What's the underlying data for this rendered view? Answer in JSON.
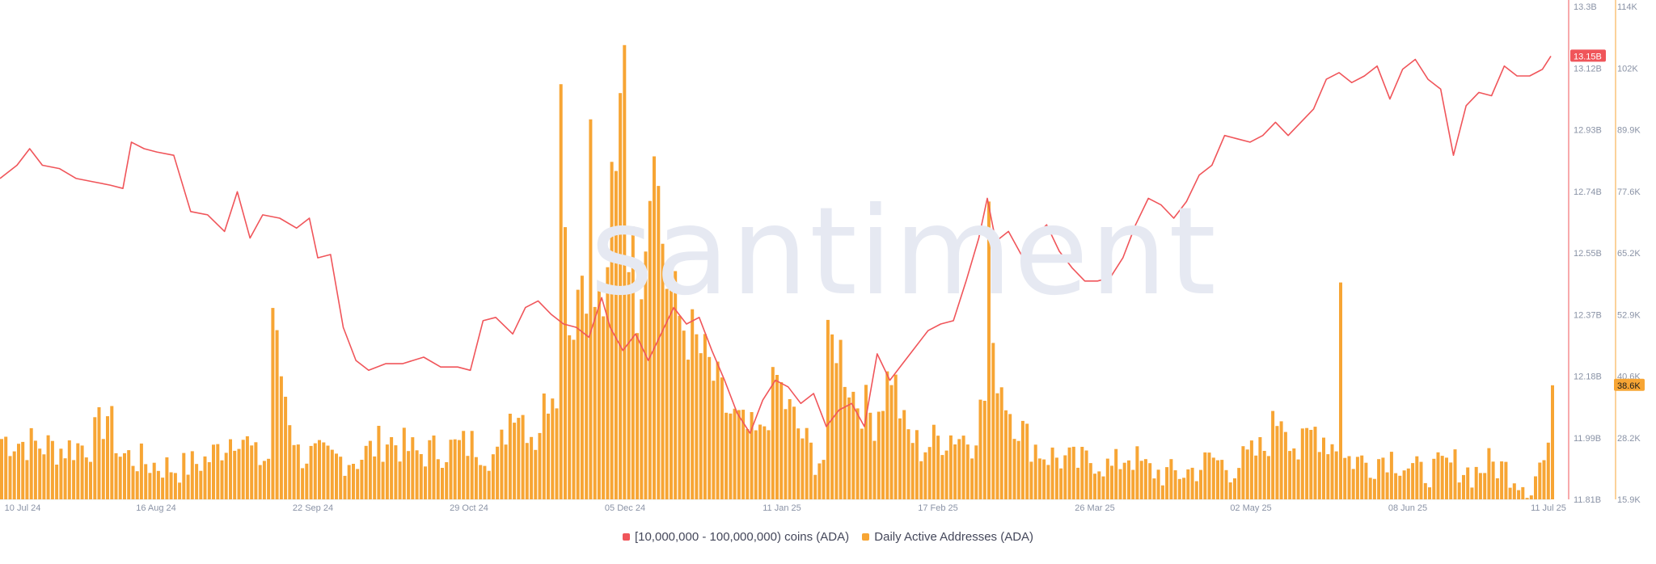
{
  "watermark": "santiment",
  "legend": {
    "series_a": "[10,000,000 - 100,000,000) coins (ADA)",
    "series_b": "Daily Active Addresses (ADA)"
  },
  "colors": {
    "line": "#f0555a",
    "bars": "#f7a534",
    "line_badge": "#f0555a",
    "bar_badge": "#f7a534",
    "axis_text": "#8a93a6",
    "grid": "#dfe3ea"
  },
  "chart_data": {
    "type": "bar",
    "x_range": [
      "2024-07-10",
      "2025-07-11"
    ],
    "x_ticks": [
      "10 Jul 24",
      "16 Aug 24",
      "22 Sep 24",
      "29 Oct 24",
      "05 Dec 24",
      "11 Jan 25",
      "17 Feb 25",
      "26 Mar 25",
      "02 May 25",
      "08 Jun 25",
      "11 Jul 25"
    ],
    "right_axis_1": {
      "label": "",
      "ticks": [
        "13.3B",
        "13.12B",
        "12.93B",
        "12.74B",
        "12.55B",
        "12.37B",
        "12.18B",
        "11.99B",
        "11.81B"
      ],
      "range": [
        11.81,
        13.3
      ],
      "current": "13.15B"
    },
    "right_axis_2": {
      "label": "",
      "ticks": [
        "114K",
        "102K",
        "89.9K",
        "77.6K",
        "65.2K",
        "52.9K",
        "40.6K",
        "28.2K",
        "15.9K"
      ],
      "range": [
        15.9,
        114
      ],
      "current": "38.6K"
    },
    "series": [
      {
        "name": "[10,000,000 - 100,000,000) coins (ADA)",
        "kind": "line",
        "axis": "right_axis_1",
        "unit": "B",
        "points": [
          [
            "2024-07-10",
            12.78
          ],
          [
            "2024-07-14",
            12.82
          ],
          [
            "2024-07-17",
            12.87
          ],
          [
            "2024-07-20",
            12.82
          ],
          [
            "2024-07-24",
            12.81
          ],
          [
            "2024-07-28",
            12.78
          ],
          [
            "2024-08-01",
            12.77
          ],
          [
            "2024-08-05",
            12.76
          ],
          [
            "2024-08-08",
            12.75
          ],
          [
            "2024-08-10",
            12.89
          ],
          [
            "2024-08-13",
            12.87
          ],
          [
            "2024-08-16",
            12.86
          ],
          [
            "2024-08-20",
            12.85
          ],
          [
            "2024-08-24",
            12.68
          ],
          [
            "2024-08-28",
            12.67
          ],
          [
            "2024-09-01",
            12.62
          ],
          [
            "2024-09-04",
            12.74
          ],
          [
            "2024-09-07",
            12.6
          ],
          [
            "2024-09-10",
            12.67
          ],
          [
            "2024-09-14",
            12.66
          ],
          [
            "2024-09-18",
            12.63
          ],
          [
            "2024-09-21",
            12.66
          ],
          [
            "2024-09-23",
            12.54
          ],
          [
            "2024-09-26",
            12.55
          ],
          [
            "2024-09-29",
            12.33
          ],
          [
            "2024-10-02",
            12.23
          ],
          [
            "2024-10-05",
            12.2
          ],
          [
            "2024-10-09",
            12.22
          ],
          [
            "2024-10-13",
            12.22
          ],
          [
            "2024-10-18",
            12.24
          ],
          [
            "2024-10-22",
            12.21
          ],
          [
            "2024-10-26",
            12.21
          ],
          [
            "2024-10-29",
            12.2
          ],
          [
            "2024-11-01",
            12.35
          ],
          [
            "2024-11-04",
            12.36
          ],
          [
            "2024-11-08",
            12.31
          ],
          [
            "2024-11-11",
            12.39
          ],
          [
            "2024-11-14",
            12.41
          ],
          [
            "2024-11-17",
            12.37
          ],
          [
            "2024-11-20",
            12.34
          ],
          [
            "2024-11-23",
            12.33
          ],
          [
            "2024-11-26",
            12.3
          ],
          [
            "2024-11-29",
            12.42
          ],
          [
            "2024-12-01",
            12.33
          ],
          [
            "2024-12-04",
            12.26
          ],
          [
            "2024-12-07",
            12.31
          ],
          [
            "2024-12-10",
            12.23
          ],
          [
            "2024-12-13",
            12.31
          ],
          [
            "2024-12-16",
            12.39
          ],
          [
            "2024-12-19",
            12.34
          ],
          [
            "2024-12-22",
            12.36
          ],
          [
            "2024-12-25",
            12.26
          ],
          [
            "2024-12-28",
            12.17
          ],
          [
            "2024-12-31",
            12.07
          ],
          [
            "2025-01-03",
            12.01
          ],
          [
            "2025-01-06",
            12.11
          ],
          [
            "2025-01-09",
            12.17
          ],
          [
            "2025-01-12",
            12.15
          ],
          [
            "2025-01-15",
            12.1
          ],
          [
            "2025-01-18",
            12.13
          ],
          [
            "2025-01-21",
            12.03
          ],
          [
            "2025-01-24",
            12.08
          ],
          [
            "2025-01-27",
            12.1
          ],
          [
            "2025-01-30",
            12.03
          ],
          [
            "2025-02-02",
            12.25
          ],
          [
            "2025-02-05",
            12.17
          ],
          [
            "2025-02-08",
            12.22
          ],
          [
            "2025-02-11",
            12.27
          ],
          [
            "2025-02-14",
            12.32
          ],
          [
            "2025-02-17",
            12.34
          ],
          [
            "2025-02-20",
            12.35
          ],
          [
            "2025-02-23",
            12.47
          ],
          [
            "2025-02-26",
            12.6
          ],
          [
            "2025-02-28",
            12.72
          ],
          [
            "2025-03-02",
            12.59
          ],
          [
            "2025-03-05",
            12.62
          ],
          [
            "2025-03-08",
            12.55
          ],
          [
            "2025-03-11",
            12.6
          ],
          [
            "2025-03-14",
            12.64
          ],
          [
            "2025-03-17",
            12.56
          ],
          [
            "2025-03-20",
            12.51
          ],
          [
            "2025-03-23",
            12.47
          ],
          [
            "2025-03-26",
            12.47
          ],
          [
            "2025-03-29",
            12.48
          ],
          [
            "2025-04-01",
            12.54
          ],
          [
            "2025-04-04",
            12.64
          ],
          [
            "2025-04-07",
            12.72
          ],
          [
            "2025-04-10",
            12.7
          ],
          [
            "2025-04-13",
            12.66
          ],
          [
            "2025-04-16",
            12.71
          ],
          [
            "2025-04-19",
            12.79
          ],
          [
            "2025-04-22",
            12.82
          ],
          [
            "2025-04-25",
            12.91
          ],
          [
            "2025-04-28",
            12.9
          ],
          [
            "2025-05-01",
            12.89
          ],
          [
            "2025-05-04",
            12.91
          ],
          [
            "2025-05-07",
            12.95
          ],
          [
            "2025-05-10",
            12.91
          ],
          [
            "2025-05-13",
            12.95
          ],
          [
            "2025-05-16",
            12.99
          ],
          [
            "2025-05-19",
            13.08
          ],
          [
            "2025-05-22",
            13.1
          ],
          [
            "2025-05-25",
            13.07
          ],
          [
            "2025-05-28",
            13.09
          ],
          [
            "2025-05-31",
            13.12
          ],
          [
            "2025-06-03",
            13.02
          ],
          [
            "2025-06-06",
            13.11
          ],
          [
            "2025-06-09",
            13.14
          ],
          [
            "2025-06-12",
            13.08
          ],
          [
            "2025-06-15",
            13.05
          ],
          [
            "2025-06-18",
            12.85
          ],
          [
            "2025-06-21",
            13.0
          ],
          [
            "2025-06-24",
            13.04
          ],
          [
            "2025-06-27",
            13.03
          ],
          [
            "2025-06-30",
            13.12
          ],
          [
            "2025-07-03",
            13.09
          ],
          [
            "2025-07-06",
            13.09
          ],
          [
            "2025-07-09",
            13.11
          ],
          [
            "2025-07-11",
            13.15
          ]
        ]
      },
      {
        "name": "Daily Active Addresses (ADA)",
        "kind": "bar",
        "axis": "right_axis_2",
        "unit": "K",
        "points": [
          [
            "2024-07-10",
            28
          ],
          [
            "2024-07-17",
            27
          ],
          [
            "2024-07-24",
            26
          ],
          [
            "2024-07-31",
            27
          ],
          [
            "2024-08-04",
            33
          ],
          [
            "2024-08-07",
            25
          ],
          [
            "2024-08-14",
            23
          ],
          [
            "2024-08-21",
            22
          ],
          [
            "2024-08-28",
            24
          ],
          [
            "2024-09-04",
            30
          ],
          [
            "2024-09-08",
            24
          ],
          [
            "2024-09-12",
            55
          ],
          [
            "2024-09-13",
            45
          ],
          [
            "2024-09-18",
            25
          ],
          [
            "2024-09-25",
            24
          ],
          [
            "2024-10-02",
            24
          ],
          [
            "2024-10-09",
            28
          ],
          [
            "2024-10-16",
            25
          ],
          [
            "2024-10-23",
            26
          ],
          [
            "2024-10-30",
            27
          ],
          [
            "2024-11-04",
            24
          ],
          [
            "2024-11-08",
            36
          ],
          [
            "2024-11-13",
            28
          ],
          [
            "2024-11-17",
            40
          ],
          [
            "2024-11-19",
            95
          ],
          [
            "2024-11-20",
            80
          ],
          [
            "2024-11-21",
            50
          ],
          [
            "2024-11-24",
            62
          ],
          [
            "2024-11-26",
            85
          ],
          [
            "2024-11-29",
            55
          ],
          [
            "2024-12-01",
            78
          ],
          [
            "2024-12-03",
            104
          ],
          [
            "2024-12-04",
            111
          ],
          [
            "2024-12-05",
            70
          ],
          [
            "2024-12-07",
            56
          ],
          [
            "2024-12-09",
            72
          ],
          [
            "2024-12-10",
            80
          ],
          [
            "2024-12-11",
            98
          ],
          [
            "2024-12-12",
            76
          ],
          [
            "2024-12-14",
            60
          ],
          [
            "2024-12-17",
            52
          ],
          [
            "2024-12-20",
            48
          ],
          [
            "2024-12-24",
            42
          ],
          [
            "2024-12-28",
            34
          ],
          [
            "2025-01-01",
            30
          ],
          [
            "2025-01-05",
            28
          ],
          [
            "2025-01-09",
            40
          ],
          [
            "2025-01-11",
            35
          ],
          [
            "2025-01-14",
            30
          ],
          [
            "2025-01-18",
            24
          ],
          [
            "2025-01-21",
            45
          ],
          [
            "2025-01-23",
            48
          ],
          [
            "2025-01-27",
            37
          ],
          [
            "2025-02-01",
            32
          ],
          [
            "2025-02-05",
            42
          ],
          [
            "2025-02-08",
            30
          ],
          [
            "2025-02-12",
            26
          ],
          [
            "2025-02-16",
            28
          ],
          [
            "2025-02-20",
            29
          ],
          [
            "2025-02-24",
            28
          ],
          [
            "2025-02-27",
            36
          ],
          [
            "2025-02-28",
            74
          ],
          [
            "2025-03-02",
            42
          ],
          [
            "2025-03-05",
            34
          ],
          [
            "2025-03-09",
            28
          ],
          [
            "2025-03-13",
            25
          ],
          [
            "2025-03-17",
            24
          ],
          [
            "2025-03-21",
            23
          ],
          [
            "2025-03-25",
            24
          ],
          [
            "2025-03-29",
            22
          ],
          [
            "2025-04-02",
            25
          ],
          [
            "2025-04-06",
            22
          ],
          [
            "2025-04-10",
            21
          ],
          [
            "2025-04-14",
            21
          ],
          [
            "2025-04-18",
            22
          ],
          [
            "2025-04-22",
            24
          ],
          [
            "2025-04-26",
            22
          ],
          [
            "2025-04-30",
            24
          ],
          [
            "2025-05-04",
            26
          ],
          [
            "2025-05-08",
            34
          ],
          [
            "2025-05-12",
            25
          ],
          [
            "2025-05-16",
            30
          ],
          [
            "2025-05-20",
            27
          ],
          [
            "2025-05-22",
            64
          ],
          [
            "2025-05-25",
            24
          ],
          [
            "2025-05-29",
            23
          ],
          [
            "2025-06-02",
            25
          ],
          [
            "2025-06-06",
            23
          ],
          [
            "2025-06-10",
            21
          ],
          [
            "2025-06-14",
            22
          ],
          [
            "2025-06-18",
            23
          ],
          [
            "2025-06-22",
            21
          ],
          [
            "2025-06-26",
            23
          ],
          [
            "2025-06-30",
            22
          ],
          [
            "2025-07-03",
            20
          ],
          [
            "2025-07-06",
            18
          ],
          [
            "2025-07-08",
            23
          ],
          [
            "2025-07-10",
            24
          ],
          [
            "2025-07-11",
            38.6
          ]
        ]
      }
    ]
  }
}
